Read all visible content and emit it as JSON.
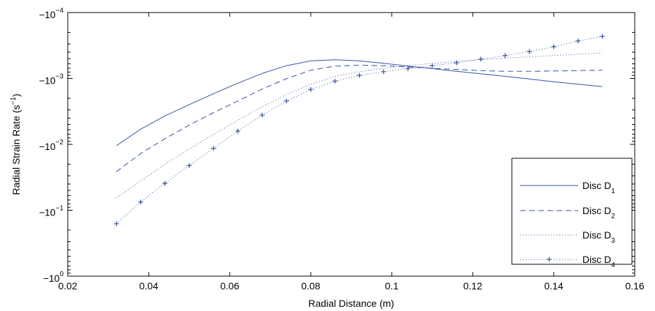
{
  "chart_data": {
    "type": "line",
    "xlabel": "Radial Distance (m)",
    "ylabel_main": "Radial Strain Rate (s",
    "ylabel_sup": "−1",
    "ylabel_close": ")",
    "x_scale": "linear",
    "y_scale": "log",
    "y_sign": "negative",
    "xlim": [
      0.02,
      0.16
    ],
    "ylim_magnitude": [
      0.0001,
      1
    ],
    "x_ticks": [
      "0.02",
      "0.04",
      "0.06",
      "0.08",
      "0.1",
      "0.12",
      "0.14",
      "0.16"
    ],
    "x_tick_values": [
      0.02,
      0.04,
      0.06,
      0.08,
      0.1,
      0.12,
      0.14,
      0.16
    ],
    "y_ticks": [
      {
        "base": "−10",
        "exp": "−4",
        "magnitude": 0.0001
      },
      {
        "base": "−10",
        "exp": "−3",
        "magnitude": 0.001
      },
      {
        "base": "−10",
        "exp": "−2",
        "magnitude": 0.01
      },
      {
        "base": "−10",
        "exp": "−1",
        "magnitude": 0.1
      },
      {
        "base": "−10",
        "exp": "0",
        "magnitude": 1
      }
    ],
    "grid": false,
    "legend_position": "bottom-right",
    "line_color": "#34509c",
    "series": [
      {
        "name": "Disc D",
        "subscript": "1",
        "style": "solid",
        "x": [
          0.032,
          0.038,
          0.044,
          0.05,
          0.056,
          0.062,
          0.068,
          0.074,
          0.08,
          0.086,
          0.092,
          0.098,
          0.104,
          0.11,
          0.116,
          0.122,
          0.128,
          0.134,
          0.14,
          0.146,
          0.152
        ],
        "y": [
          -0.0105,
          -0.0059,
          -0.0037,
          -0.0025,
          -0.0017,
          -0.00118,
          -0.00084,
          -0.00064,
          -0.00054,
          -0.00052,
          -0.00054,
          -0.00059,
          -0.00065,
          -0.00071,
          -0.00078,
          -0.00085,
          -0.00093,
          -0.00102,
          -0.00112,
          -0.00122,
          -0.00133
        ]
      },
      {
        "name": "Disc D",
        "subscript": "2",
        "style": "dashed",
        "x": [
          0.032,
          0.038,
          0.044,
          0.05,
          0.056,
          0.062,
          0.068,
          0.074,
          0.08,
          0.086,
          0.092,
          0.098,
          0.104,
          0.11,
          0.116,
          0.122,
          0.128,
          0.134,
          0.14,
          0.146,
          0.152
        ],
        "y": [
          -0.026,
          -0.0138,
          -0.0082,
          -0.0051,
          -0.0033,
          -0.0022,
          -0.00145,
          -0.00101,
          -0.00075,
          -0.00065,
          -0.00063,
          -0.00064,
          -0.00067,
          -0.0007,
          -0.00073,
          -0.00076,
          -0.00078,
          -0.00078,
          -0.00077,
          -0.00076,
          -0.00075
        ]
      },
      {
        "name": "Disc D",
        "subscript": "3",
        "style": "dotted",
        "x": [
          0.032,
          0.038,
          0.044,
          0.05,
          0.056,
          0.062,
          0.068,
          0.074,
          0.08,
          0.086,
          0.092,
          0.098,
          0.104,
          0.11,
          0.116,
          0.122,
          0.128,
          0.134,
          0.14,
          0.146,
          0.152
        ],
        "y": [
          -0.065,
          -0.036,
          -0.02,
          -0.0118,
          -0.0071,
          -0.0043,
          -0.0027,
          -0.00175,
          -0.00123,
          -0.00093,
          -0.00079,
          -0.0007,
          -0.00064,
          -0.00059,
          -0.00055,
          -0.00052,
          -0.00049,
          -0.00047,
          -0.00045,
          -0.00043,
          -0.00041
        ]
      },
      {
        "name": "Disc D",
        "subscript": "4",
        "style": "dotted-plus",
        "x": [
          0.032,
          0.038,
          0.044,
          0.05,
          0.056,
          0.062,
          0.068,
          0.074,
          0.08,
          0.086,
          0.092,
          0.098,
          0.104,
          0.11,
          0.116,
          0.122,
          0.128,
          0.134,
          0.14,
          0.146,
          0.152
        ],
        "y": [
          -0.16,
          -0.075,
          -0.039,
          -0.021,
          -0.0115,
          -0.0063,
          -0.0036,
          -0.0022,
          -0.00147,
          -0.0011,
          -0.0009,
          -0.00079,
          -0.00071,
          -0.00064,
          -0.00058,
          -0.00051,
          -0.00045,
          -0.00039,
          -0.00033,
          -0.00027,
          -0.00023
        ]
      }
    ]
  }
}
